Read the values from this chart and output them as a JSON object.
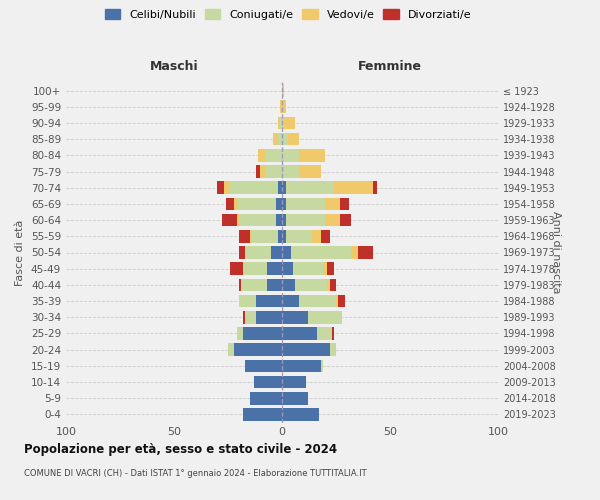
{
  "age_groups": [
    "0-4",
    "5-9",
    "10-14",
    "15-19",
    "20-24",
    "25-29",
    "30-34",
    "35-39",
    "40-44",
    "45-49",
    "50-54",
    "55-59",
    "60-64",
    "65-69",
    "70-74",
    "75-79",
    "80-84",
    "85-89",
    "90-94",
    "95-99",
    "100+"
  ],
  "birth_years": [
    "2019-2023",
    "2014-2018",
    "2009-2013",
    "2004-2008",
    "1999-2003",
    "1994-1998",
    "1989-1993",
    "1984-1988",
    "1979-1983",
    "1974-1978",
    "1969-1973",
    "1964-1968",
    "1959-1963",
    "1954-1958",
    "1949-1953",
    "1944-1948",
    "1939-1943",
    "1934-1938",
    "1929-1933",
    "1924-1928",
    "≤ 1923"
  ],
  "males": {
    "celibi": [
      18,
      15,
      13,
      17,
      22,
      18,
      12,
      12,
      7,
      7,
      5,
      2,
      3,
      3,
      2,
      0,
      0,
      0,
      0,
      0,
      0
    ],
    "coniugati": [
      0,
      0,
      0,
      0,
      3,
      3,
      5,
      8,
      12,
      11,
      12,
      12,
      17,
      18,
      22,
      8,
      8,
      2,
      1,
      0,
      0
    ],
    "vedovi": [
      0,
      0,
      0,
      0,
      0,
      0,
      0,
      0,
      0,
      0,
      0,
      1,
      1,
      1,
      3,
      2,
      3,
      2,
      1,
      1,
      0
    ],
    "divorziati": [
      0,
      0,
      0,
      0,
      0,
      0,
      1,
      0,
      1,
      6,
      3,
      5,
      7,
      4,
      3,
      2,
      0,
      0,
      0,
      0,
      0
    ]
  },
  "females": {
    "nubili": [
      17,
      12,
      11,
      18,
      22,
      16,
      12,
      8,
      6,
      5,
      4,
      2,
      2,
      2,
      2,
      0,
      0,
      0,
      0,
      0,
      0
    ],
    "coniugate": [
      0,
      0,
      0,
      1,
      3,
      7,
      16,
      17,
      15,
      14,
      28,
      12,
      18,
      18,
      22,
      8,
      8,
      3,
      1,
      0,
      0
    ],
    "vedove": [
      0,
      0,
      0,
      0,
      0,
      0,
      0,
      1,
      1,
      2,
      3,
      4,
      7,
      7,
      18,
      10,
      12,
      5,
      5,
      2,
      1
    ],
    "divorziate": [
      0,
      0,
      0,
      0,
      0,
      1,
      0,
      3,
      3,
      3,
      7,
      4,
      5,
      4,
      2,
      0,
      0,
      0,
      0,
      0,
      0
    ]
  },
  "colors": {
    "celibi": "#4a72a8",
    "coniugati": "#c5d9a0",
    "vedovi": "#f0c96a",
    "divorziati": "#c0302a"
  },
  "title_main": "Popolazione per età, sesso e stato civile - 2024",
  "title_sub": "COMUNE DI VACRI (CH) - Dati ISTAT 1° gennaio 2024 - Elaborazione TUTTITALIA.IT",
  "xlabel_left": "Maschi",
  "xlabel_right": "Femmine",
  "ylabel_left": "Fasce di età",
  "ylabel_right": "Anni di nascita",
  "legend_labels": [
    "Celibi/Nubili",
    "Coniugati/e",
    "Vedovi/e",
    "Divorziati/e"
  ],
  "xlim": 100,
  "background_color": "#f0f0f0",
  "grid_color": "#cccccc"
}
